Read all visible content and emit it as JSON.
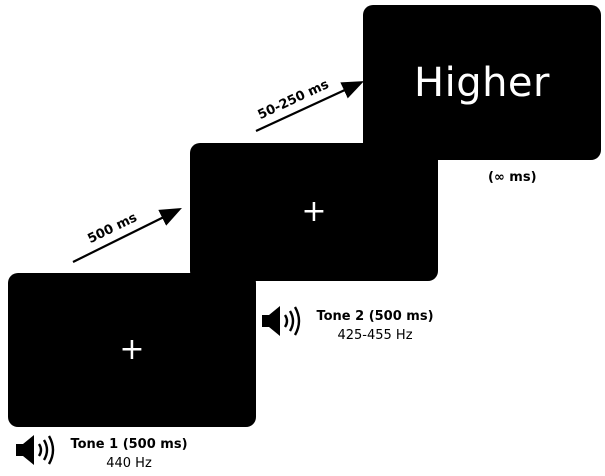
{
  "screens": {
    "screen1": {
      "symbol": "+"
    },
    "screen2": {
      "symbol": "+"
    },
    "screen3": {
      "word": "Higher"
    }
  },
  "tones": {
    "tone1": {
      "title": "Tone 1 (500 ms)",
      "frequency": "440 Hz"
    },
    "tone2": {
      "title": "Tone 2 (500 ms)",
      "frequency": "425-455 Hz"
    }
  },
  "intervals": {
    "first": "500 ms",
    "second": "50-250 ms",
    "final": "(∞ ms)"
  },
  "icons": {
    "tone1": "speaker-icon",
    "tone2": "speaker-icon"
  }
}
